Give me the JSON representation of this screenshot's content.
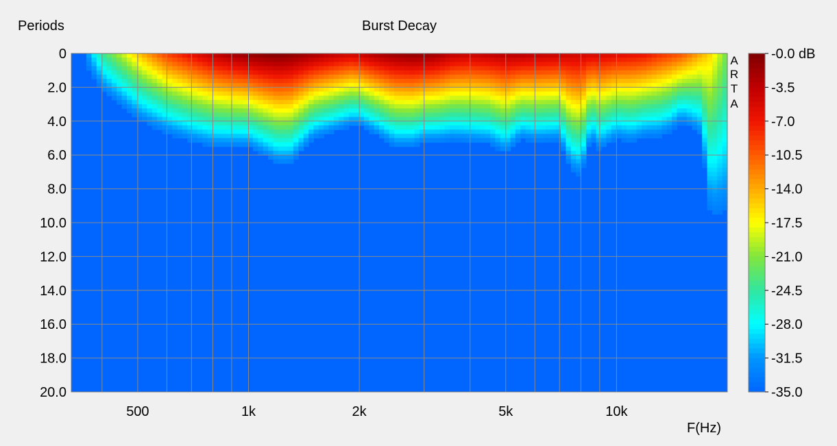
{
  "chart_data": {
    "type": "heatmap",
    "title": "Burst Decay",
    "xlabel": "F(Hz)",
    "ylabel": "Periods",
    "x_scale": "log",
    "xlim": [
      330,
      20000
    ],
    "ylim": [
      0,
      20
    ],
    "x_ticks": [
      {
        "value": 500,
        "label": "500"
      },
      {
        "value": 1000,
        "label": "1k"
      },
      {
        "value": 2000,
        "label": "2k"
      },
      {
        "value": 5000,
        "label": "5k"
      },
      {
        "value": 10000,
        "label": "10k"
      }
    ],
    "y_ticks": [
      "0",
      "2.0",
      "4.0",
      "6.0",
      "8.0",
      "10.0",
      "12.0",
      "14.0",
      "16.0",
      "18.0",
      "20.0"
    ],
    "colorbar_ticks": [
      "-0.0 dB",
      "-3.5",
      "-7.0",
      "-10.5",
      "-14.0",
      "-17.5",
      "-21.0",
      "-24.5",
      "-28.0",
      "-31.5",
      "-35.0"
    ],
    "colorbar_range_db": [
      -35,
      0
    ],
    "grid": true,
    "watermark_letters": [
      "A",
      "R",
      "T",
      "A"
    ],
    "decay_profile": {
      "freq_hz": [
        330,
        400,
        500,
        600,
        700,
        800,
        900,
        1000,
        1100,
        1200,
        1300,
        1500,
        1700,
        1900,
        2000,
        2200,
        2500,
        2800,
        3000,
        3300,
        3600,
        4000,
        4500,
        5000,
        5500,
        6000,
        7000,
        7500,
        8000,
        8500,
        9000,
        10000,
        11000,
        12000,
        13000,
        14000,
        15000,
        16000,
        17000,
        18000,
        19000,
        20000
      ],
      "peak_level_db": [
        -40,
        -24,
        -15,
        -9,
        -6,
        -3.5,
        -2,
        -1,
        -0.3,
        0,
        -0.5,
        -2,
        -3.5,
        -4.5,
        -4,
        -2.5,
        -1.3,
        -0.8,
        -1,
        -2,
        -3.5,
        -4,
        -3.5,
        -3,
        -3,
        -3.5,
        -4,
        -4.5,
        -4.5,
        -5,
        -5,
        -5.5,
        -6,
        -6.5,
        -8,
        -9,
        -10,
        -12,
        -14,
        -16,
        -19,
        -22
      ],
      "decay_end_periods": [
        0,
        2.5,
        4.2,
        5.0,
        5.5,
        5.8,
        5.8,
        5.8,
        6.3,
        6.8,
        6.8,
        5.3,
        4.9,
        4.5,
        4.5,
        5.0,
        5.8,
        5.8,
        5.5,
        5.5,
        5.4,
        5.5,
        5.6,
        6.2,
        5.3,
        5.5,
        5.4,
        7.2,
        7.6,
        5.3,
        6.0,
        5.3,
        5.5,
        5.2,
        5.2,
        4.9,
        4.3,
        4.7,
        5.3,
        10.4,
        10.4,
        10.4
      ]
    }
  }
}
